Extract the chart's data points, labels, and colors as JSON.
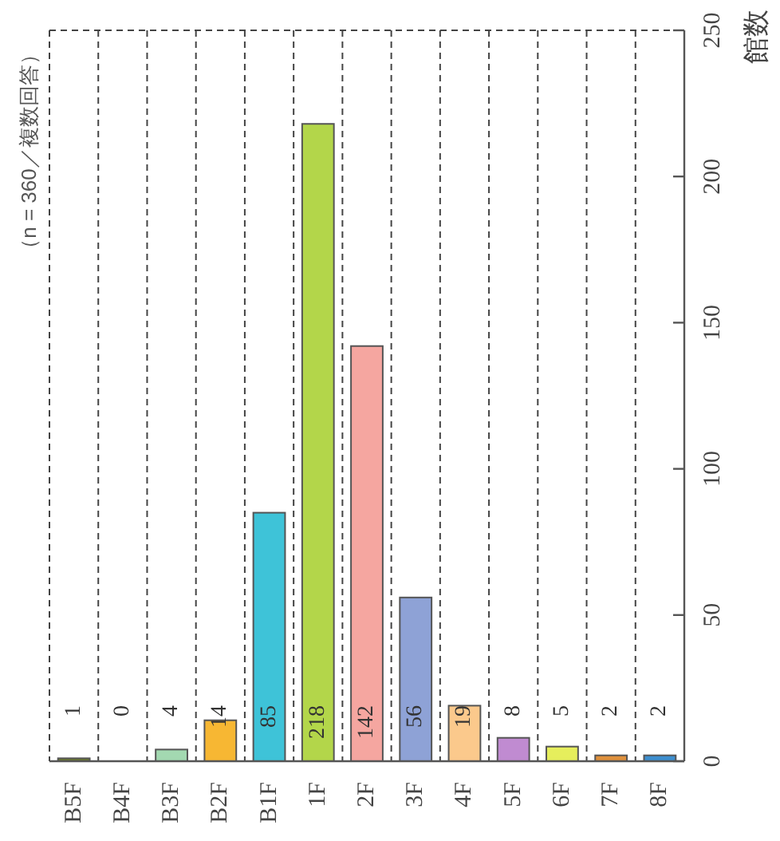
{
  "chart_data": {
    "type": "bar",
    "categories": [
      "B5F",
      "B4F",
      "B3F",
      "B2F",
      "B1F",
      "1F",
      "2F",
      "3F",
      "4F",
      "5F",
      "6F",
      "7F",
      "8F"
    ],
    "values": [
      1,
      0,
      4,
      14,
      85,
      218,
      142,
      56,
      19,
      8,
      5,
      2,
      2
    ],
    "colors": [
      "#6b7a2e",
      null,
      "#a3d9b1",
      "#f7b733",
      "#3ec3d8",
      "#b3d64a",
      "#f5a6a0",
      "#8ea2d6",
      "#fbc98c",
      "#c08bd1",
      "#e6ee5c",
      "#e0913c",
      "#3d8fd0"
    ],
    "ylabel": "館数",
    "annotations": [
      "（n = 360／複数回答）"
    ],
    "ylim": [
      0,
      250
    ],
    "yticks": [
      0,
      50,
      100,
      150,
      200,
      250
    ],
    "grid": "x",
    "data_labels": true
  }
}
